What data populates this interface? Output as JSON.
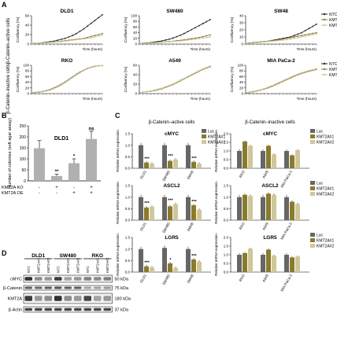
{
  "panels": {
    "a": "A",
    "b": "B",
    "c": "C",
    "d": "D"
  },
  "colors": {
    "ntc": "#222222",
    "k1": "#8a7a2c",
    "k2": "#cfc79a",
    "luc": "#666666",
    "bar_b": "#b0b0b0",
    "blot_bg": "#f2f2f2"
  },
  "panel_a": {
    "row_labels": [
      "β-Catenin–active cells",
      "β-Catenin–inactive cells"
    ],
    "ylabel": "Confluency (%)",
    "xlabel": "Time (hours)",
    "legend": [
      "NTC",
      "KMT2A#1",
      "KMT2A#2"
    ],
    "charts": [
      {
        "title": "DLD1",
        "ymax": 60,
        "yticks": [
          "0",
          "20",
          "40",
          "60"
        ],
        "ntc": [
          1,
          1.5,
          2,
          3,
          4,
          5,
          6,
          8,
          10,
          12,
          15,
          18,
          22,
          27,
          32,
          38,
          44,
          50,
          56,
          62
        ],
        "k1": [
          1,
          1.5,
          2,
          2.5,
          3,
          3.5,
          4,
          5,
          6,
          7,
          8,
          9,
          10,
          11,
          12,
          14,
          16,
          18,
          20,
          22
        ],
        "k2": [
          1,
          1.5,
          2,
          2.5,
          3,
          3.5,
          4,
          4.5,
          5,
          6,
          7,
          8,
          9,
          10,
          11,
          12,
          13,
          15,
          17,
          19
        ]
      },
      {
        "title": "SW480",
        "ymax": 100,
        "yticks": [
          "0",
          "20",
          "40",
          "60",
          "80",
          "100"
        ],
        "ntc": [
          2,
          3,
          4,
          5,
          7,
          9,
          11,
          14,
          17,
          21,
          26,
          31,
          37,
          44,
          51,
          58,
          65,
          72,
          79,
          86
        ],
        "k1": [
          2,
          3,
          3.5,
          4,
          5,
          6,
          7,
          8,
          9,
          10,
          12,
          13,
          15,
          17,
          19,
          21,
          23,
          26,
          29,
          32
        ],
        "k2": [
          2,
          2.5,
          3,
          3.5,
          4,
          5,
          6,
          7,
          8,
          9,
          10,
          11,
          12,
          14,
          15,
          17,
          19,
          21,
          23,
          25
        ]
      },
      {
        "title": "SW48",
        "ymax": 40,
        "yticks": [
          "0",
          "10",
          "20",
          "30",
          "40"
        ],
        "ntc": [
          1,
          1.5,
          2,
          2.5,
          3,
          3.5,
          4,
          5,
          6,
          7,
          8,
          9,
          10,
          12,
          14,
          16,
          19,
          22,
          25,
          28
        ],
        "k1": [
          1,
          1.5,
          2,
          2.5,
          3,
          3.5,
          4,
          4.5,
          5,
          6,
          7,
          8,
          9,
          10,
          11,
          12,
          13,
          14,
          15,
          16
        ],
        "k2": [
          1,
          1.2,
          1.5,
          2,
          2.5,
          3,
          3.5,
          4,
          4.5,
          5,
          5.5,
          6,
          7,
          8,
          9,
          10,
          11,
          12,
          13,
          14
        ]
      },
      {
        "title": "RKO",
        "ymax": 100,
        "yticks": [
          "0",
          "20",
          "40",
          "60",
          "80",
          "100"
        ],
        "ntc": [
          3,
          4,
          6,
          8,
          11,
          15,
          20,
          26,
          33,
          41,
          50,
          59,
          68,
          76,
          83,
          89,
          94,
          97,
          98,
          99
        ],
        "k1": [
          3,
          4,
          5,
          7,
          10,
          13,
          18,
          24,
          31,
          39,
          48,
          57,
          66,
          74,
          82,
          88,
          93,
          96,
          98,
          99
        ],
        "k2": [
          3,
          4,
          6,
          8,
          11,
          15,
          19,
          25,
          32,
          40,
          49,
          58,
          67,
          75,
          83,
          89,
          94,
          97,
          98,
          99
        ]
      },
      {
        "title": "A549",
        "ymax": 60,
        "yticks": [
          "0",
          "20",
          "40",
          "60"
        ],
        "ntc": [
          2,
          3,
          4,
          5,
          7,
          9,
          11,
          14,
          17,
          20,
          24,
          28,
          32,
          36,
          40,
          44,
          48,
          52,
          55,
          58
        ],
        "k1": [
          2,
          3,
          4,
          5,
          6,
          8,
          10,
          13,
          16,
          19,
          23,
          27,
          31,
          35,
          39,
          43,
          47,
          51,
          54,
          57
        ],
        "k2": [
          2,
          3,
          4,
          5,
          7,
          9,
          11,
          14,
          17,
          20,
          24,
          28,
          32,
          36,
          40,
          44,
          48,
          52,
          55,
          58
        ]
      },
      {
        "title": "MIA PaCa-2",
        "ymax": 100,
        "yticks": [
          "0",
          "20",
          "40",
          "60",
          "80",
          "100"
        ],
        "ntc": [
          3,
          5,
          7,
          10,
          13,
          17,
          22,
          27,
          33,
          39,
          45,
          51,
          57,
          63,
          68,
          73,
          77,
          81,
          84,
          87
        ],
        "k1": [
          3,
          4,
          6,
          9,
          12,
          16,
          20,
          25,
          31,
          37,
          43,
          49,
          55,
          61,
          66,
          71,
          75,
          79,
          82,
          85
        ],
        "k2": [
          3,
          5,
          7,
          10,
          13,
          17,
          22,
          27,
          33,
          39,
          45,
          51,
          57,
          63,
          68,
          73,
          77,
          81,
          84,
          87
        ]
      }
    ]
  },
  "chart_data": [
    {
      "type": "bar",
      "title": "DLD1",
      "ylabel": "Number of colonies (soft agar assay)",
      "ylim": [
        0,
        250
      ],
      "yticks": [
        "0",
        "50",
        "100",
        "150",
        "200",
        "250"
      ],
      "values": [
        148,
        22,
        80,
        190
      ],
      "errors": [
        35,
        8,
        20,
        35
      ],
      "sig": [
        "",
        "**",
        "*",
        "ns"
      ],
      "rows": [
        {
          "label": "KMT2A KO",
          "marks": [
            "-",
            "+",
            "-",
            "+"
          ]
        },
        {
          "label": "KMT2A OE",
          "marks": [
            "-",
            "-",
            "+",
            "+"
          ]
        }
      ]
    },
    {
      "type": "bar",
      "title": "β-Catenin–active cells",
      "subcharts": [
        {
          "title": "cMYC",
          "ylim": [
            0,
            1.5
          ],
          "yticks": [
            "0.0",
            "0.5",
            "1.0",
            "1.5"
          ],
          "categories": [
            "DLD1",
            "SW480",
            "SW48"
          ],
          "luc": [
            1,
            1,
            1
          ],
          "k1": [
            0.25,
            0.32,
            0.28
          ],
          "k2": [
            0.2,
            0.38,
            0.2
          ],
          "sig": [
            "***",
            "***",
            "***"
          ]
        },
        {
          "title": "ASCL2",
          "ylim": [
            0,
            1.5
          ],
          "yticks": [
            "0.0",
            "0.5",
            "1.0",
            "1.5"
          ],
          "categories": [
            "DLD1",
            "SW480",
            "SW48"
          ],
          "luc": [
            1,
            1,
            1
          ],
          "k1": [
            0.55,
            0.6,
            0.65
          ],
          "k2": [
            0.58,
            0.7,
            0.45
          ],
          "sig": [
            "***",
            "***",
            "***"
          ]
        },
        {
          "title": "LGR5",
          "ylim": [
            0,
            1.5
          ],
          "yticks": [
            "0.0",
            "0.5",
            "1.0",
            "1.5"
          ],
          "categories": [
            "DLD1",
            "SW480",
            "SW48"
          ],
          "luc": [
            1,
            1.05,
            1
          ],
          "k1": [
            0.25,
            0.38,
            0.55
          ],
          "k2": [
            0.2,
            0.18,
            0.45
          ],
          "sig": [
            "***",
            "*",
            "***"
          ]
        }
      ]
    },
    {
      "type": "bar",
      "title": "β-Catenin–inactive cells",
      "legend": [
        "Luc",
        "KMT2A#1",
        "KMT2A#2"
      ],
      "subcharts": [
        {
          "title": "cMYC",
          "ylim": [
            0,
            2.0
          ],
          "yticks": [
            "0.0",
            "0.5",
            "1.0",
            "1.5",
            "2.0"
          ],
          "categories": [
            "RKO",
            "A549",
            "MIA PaCa-2"
          ],
          "luc": [
            1,
            1,
            1
          ],
          "k1": [
            1.55,
            1.3,
            0.75
          ],
          "k2": [
            1.3,
            0.8,
            1.05
          ]
        },
        {
          "title": "ASCL2",
          "ylim": [
            0,
            1.5
          ],
          "yticks": [
            "0.0",
            "0.5",
            "1.0",
            "1.5"
          ],
          "categories": [
            "RKO",
            "A549",
            "MIA PaCa-2"
          ],
          "luc": [
            1,
            1,
            1
          ],
          "k1": [
            1.1,
            1.15,
            0.8
          ],
          "k2": [
            1.05,
            1.1,
            0.7
          ]
        },
        {
          "title": "LGR5",
          "ylim": [
            0,
            2.0
          ],
          "yticks": [
            "0.0",
            "0.5",
            "1.0",
            "1.5",
            "2.0"
          ],
          "categories": [
            "RKO",
            "A549",
            "MIA PaCa-2"
          ],
          "luc": [
            1,
            1,
            1
          ],
          "k1": [
            1.1,
            1.3,
            0.85
          ],
          "k2": [
            1.35,
            0.95,
            0.9
          ]
        }
      ]
    }
  ],
  "panel_c": {
    "ylabel": "Relative mRNA expression",
    "col_titles": [
      "β-Catenin–active cells",
      "β-Catenin–inactive cells"
    ]
  },
  "panel_d": {
    "cell_lines": [
      "DLD1",
      "SW480",
      "RKO"
    ],
    "lanes": [
      "NTC",
      "KMT2A#1",
      "KMT2A#2",
      "NTC",
      "KMT2A#1",
      "KMT2A#2",
      "NTC",
      "KMT2A#1",
      "KMT2A#2"
    ],
    "proteins": [
      "cMYC",
      "β-Catenin",
      "KMT2A",
      "β-Actin"
    ],
    "markers": [
      "50 kDa",
      "75 kDa",
      "180 kDa",
      "37 kDa"
    ]
  }
}
